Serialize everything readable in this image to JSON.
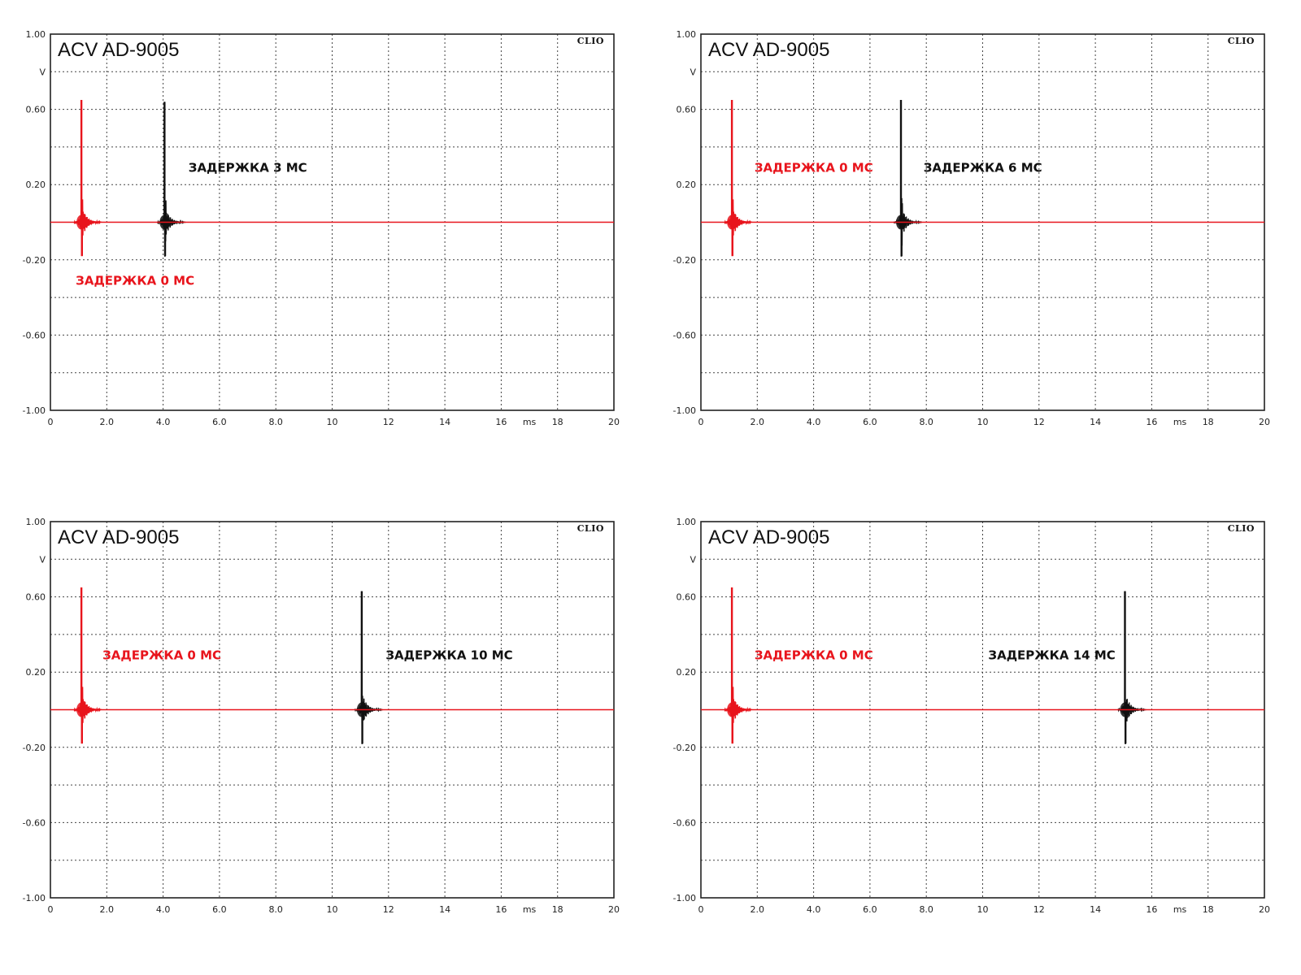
{
  "colors": {
    "ref": "#e8141c",
    "delayed": "#111111",
    "grid": "#444444",
    "frame": "#222222"
  },
  "chart_data": [
    {
      "type": "line",
      "title": "ACV AD-9005",
      "brand": "CLIO",
      "ylabel": "V",
      "xlabel": "ms",
      "xlim": [
        0,
        20
      ],
      "ylim": [
        -1.0,
        1.0
      ],
      "x_ticks": [
        "0",
        "2.0",
        "4.0",
        "6.0",
        "8.0",
        "10",
        "12",
        "14",
        "16",
        "ms",
        "18",
        "20"
      ],
      "y_ticks": [
        "1.00",
        "V",
        "0.60",
        "",
        "0.20",
        "",
        "-0.20",
        "",
        "-0.60",
        "",
        "-1.00"
      ],
      "grid": true,
      "series": [
        {
          "role": "ref",
          "peak_x": 1.1,
          "peak_y": 0.65,
          "min_y": -0.18,
          "label": "ЗАДЕРЖКА 0 МС",
          "label_pos": [
            0.9,
            -0.31
          ]
        },
        {
          "role": "delayed",
          "peak_x": 4.05,
          "peak_y": 0.64,
          "min_y": -0.18,
          "label": "ЗАДЕРЖКА 3 МС",
          "label_pos": [
            4.9,
            0.29
          ]
        }
      ]
    },
    {
      "type": "line",
      "title": "ACV AD-9005",
      "brand": "CLIO",
      "ylabel": "V",
      "xlabel": "ms",
      "xlim": [
        0,
        20
      ],
      "ylim": [
        -1.0,
        1.0
      ],
      "x_ticks": [
        "0",
        "2.0",
        "4.0",
        "6.0",
        "8.0",
        "10",
        "12",
        "14",
        "16",
        "ms",
        "18",
        "20"
      ],
      "y_ticks": [
        "1.00",
        "V",
        "0.60",
        "",
        "0.20",
        "",
        "-0.20",
        "",
        "-0.60",
        "",
        "-1.00"
      ],
      "grid": true,
      "series": [
        {
          "role": "ref",
          "peak_x": 1.1,
          "peak_y": 0.65,
          "min_y": -0.18,
          "label": "ЗАДЕРЖКА 0 МС",
          "label_pos": [
            1.9,
            0.29
          ]
        },
        {
          "role": "delayed",
          "peak_x": 7.1,
          "peak_y": 0.65,
          "min_y": -0.18,
          "label": "ЗАДЕРЖКА 6 МС",
          "label_pos": [
            7.9,
            0.29
          ]
        }
      ]
    },
    {
      "type": "line",
      "title": "ACV AD-9005",
      "brand": "CLIO",
      "ylabel": "V",
      "xlabel": "ms",
      "xlim": [
        0,
        20
      ],
      "ylim": [
        -1.0,
        1.0
      ],
      "x_ticks": [
        "0",
        "2.0",
        "4.0",
        "6.0",
        "8.0",
        "10",
        "12",
        "14",
        "16",
        "ms",
        "18",
        "20"
      ],
      "y_ticks": [
        "1.00",
        "V",
        "0.60",
        "",
        "0.20",
        "",
        "-0.20",
        "",
        "-0.60",
        "",
        "-1.00"
      ],
      "grid": true,
      "series": [
        {
          "role": "ref",
          "peak_x": 1.1,
          "peak_y": 0.65,
          "min_y": -0.18,
          "label": "ЗАДЕРЖКА 0 МС",
          "label_pos": [
            1.85,
            0.29
          ]
        },
        {
          "role": "delayed",
          "peak_x": 11.05,
          "peak_y": 0.63,
          "min_y": -0.18,
          "label": "ЗАДЕРЖКА 10 МС",
          "label_pos": [
            11.9,
            0.29
          ]
        }
      ]
    },
    {
      "type": "line",
      "title": "ACV AD-9005",
      "brand": "CLIO",
      "ylabel": "V",
      "xlabel": "ms",
      "xlim": [
        0,
        20
      ],
      "ylim": [
        -1.0,
        1.0
      ],
      "x_ticks": [
        "0",
        "2.0",
        "4.0",
        "6.0",
        "8.0",
        "10",
        "12",
        "14",
        "16",
        "ms",
        "18",
        "20"
      ],
      "y_ticks": [
        "1.00",
        "V",
        "0.60",
        "",
        "0.20",
        "",
        "-0.20",
        "",
        "-0.60",
        "",
        "-1.00"
      ],
      "grid": true,
      "series": [
        {
          "role": "ref",
          "peak_x": 1.1,
          "peak_y": 0.65,
          "min_y": -0.18,
          "label": "ЗАДЕРЖКА 0 МС",
          "label_pos": [
            1.9,
            0.29
          ]
        },
        {
          "role": "delayed",
          "peak_x": 15.05,
          "peak_y": 0.63,
          "min_y": -0.18,
          "label": "ЗАДЕРЖКА 14 МС",
          "label_pos": [
            10.2,
            0.29
          ]
        }
      ]
    }
  ]
}
